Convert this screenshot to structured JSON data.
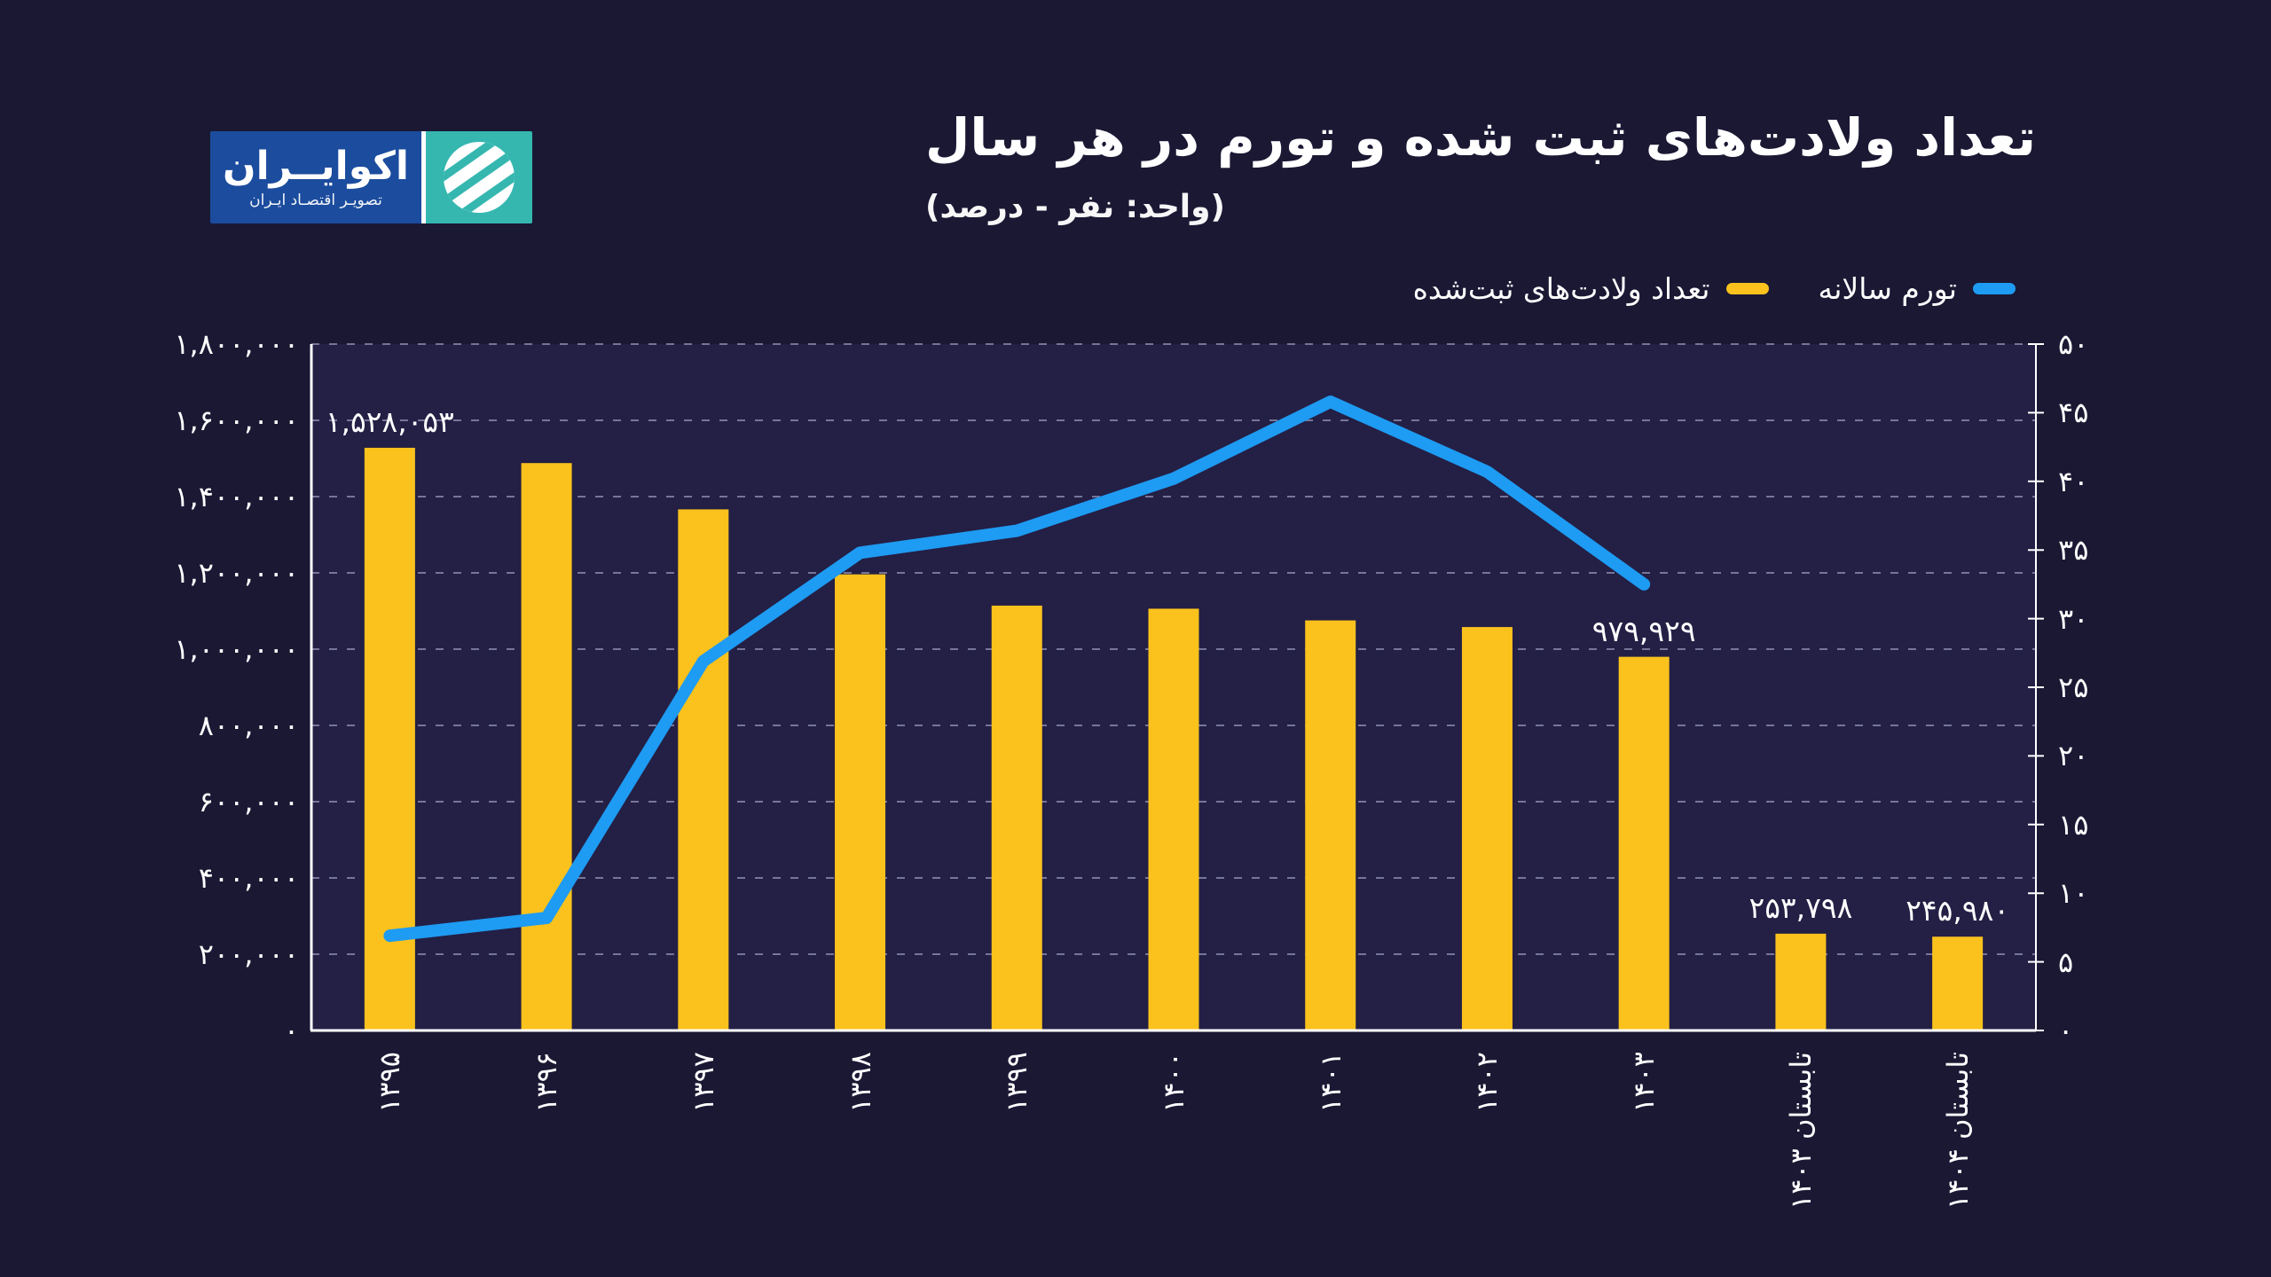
{
  "brand": {
    "name": "اکوایــران",
    "tagline": "تصویـر اقتصـاد ایـران",
    "box_blue": "#1B4C9E",
    "box_teal": "#35B7B0"
  },
  "header": {
    "title": "تعداد ولادت‌های ثبت شده و تورم در هر سال",
    "subtitle": "(واحد: نفر - درصد)"
  },
  "legend": [
    {
      "label": "تورم سالانه",
      "color": "#1E9BF2",
      "series": "inflation-line"
    },
    {
      "label": "تعداد ولادت‌های ثبت‌شده",
      "color": "#FBC21D",
      "series": "births-bars"
    }
  ],
  "colors": {
    "background": "#1B1834",
    "plot_background": "#241F45",
    "bar_yellow": "#FBC21D",
    "line_blue": "#1E9BF2",
    "gridline": "rgba(200,205,235,0.5)",
    "axis": "#ffffff"
  },
  "chart_data": {
    "type": "bar",
    "subtype": "combo-bar-line",
    "grid": "dashed-horizontal",
    "legend_position": "top-right",
    "categories": [
      "۱۳۹۵",
      "۱۳۹۶",
      "۱۳۹۷",
      "۱۳۹۸",
      "۱۳۹۹",
      "۱۴۰۰",
      "۱۴۰۱",
      "۱۴۰۲",
      "۱۴۰۳",
      "تابستان ۱۴۰۳",
      "تابستان ۱۴۰۴"
    ],
    "series": [
      {
        "name": "تعداد ولادت‌های ثبت‌شده",
        "type": "bar",
        "axis": "left",
        "color": "#FBC21D",
        "values": [
          1528053,
          1487913,
          1366509,
          1196132,
          1114128,
          1106072,
          1075381,
          1057948,
          979929,
          253798,
          245980
        ],
        "value_labels": {
          "0": "۱,۵۲۸,۰۵۳",
          "8": "۹۷۹,۹۲۹",
          "9": "۲۵۳,۷۹۸",
          "10": "۲۴۵,۹۸۰"
        }
      },
      {
        "name": "تورم سالانه",
        "type": "line",
        "axis": "right",
        "color": "#1E9BF2",
        "values": [
          6.9,
          8.2,
          26.9,
          34.8,
          36.4,
          40.2,
          45.8,
          40.7,
          32.5,
          null,
          null
        ]
      }
    ],
    "left_axis": {
      "min": 0,
      "max": 1800000,
      "step": 200000,
      "tick_labels": [
        "۰",
        "۲۰۰,۰۰۰",
        "۴۰۰,۰۰۰",
        "۶۰۰,۰۰۰",
        "۸۰۰,۰۰۰",
        "۱,۰۰۰,۰۰۰",
        "۱,۲۰۰,۰۰۰",
        "۱,۴۰۰,۰۰۰",
        "۱,۶۰۰,۰۰۰",
        "۱,۸۰۰,۰۰۰"
      ]
    },
    "right_axis": {
      "min": 0,
      "max": 50,
      "step": 5,
      "tick_labels": [
        "۰",
        "۵",
        "۱۰",
        "۱۵",
        "۲۰",
        "۲۵",
        "۳۰",
        "۳۵",
        "۴۰",
        "۴۵",
        "۵۰"
      ]
    }
  }
}
